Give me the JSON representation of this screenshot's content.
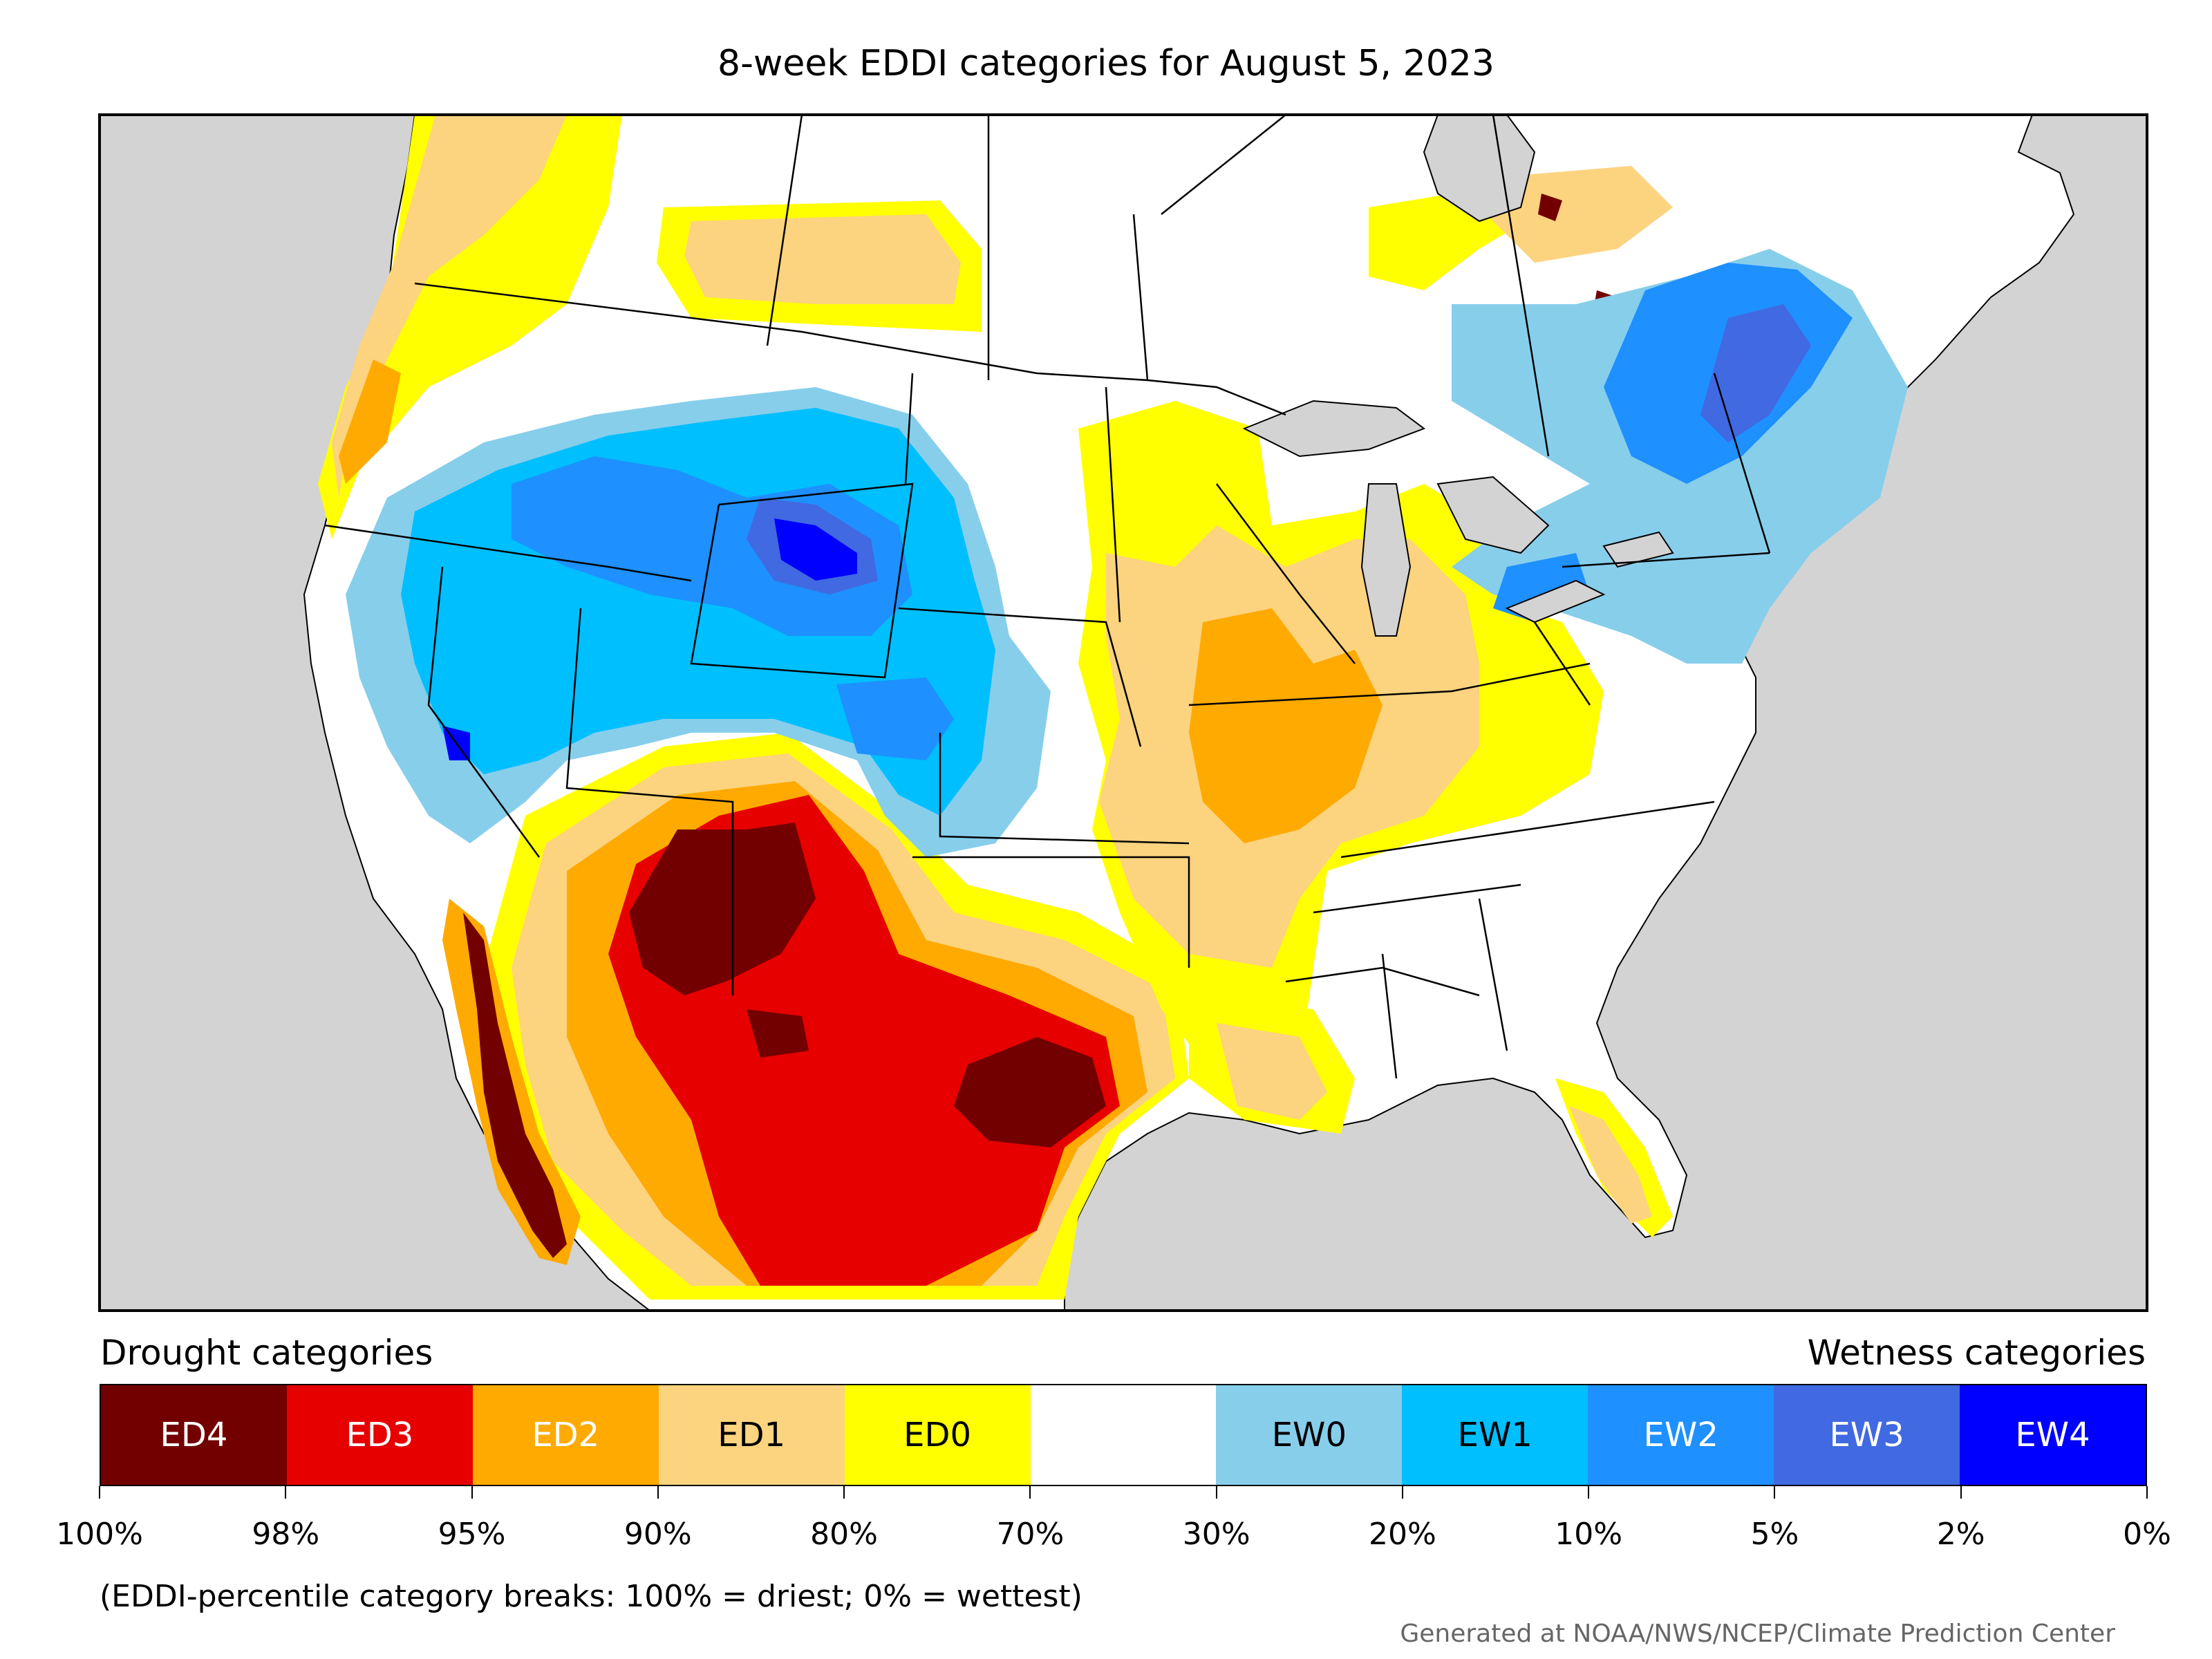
{
  "title": "8-week EDDI categories for August 5, 2023",
  "legend": {
    "drought_title": "Drought categories",
    "wetness_title": "Wetness categories",
    "categories": [
      {
        "label": "ED4",
        "color": "#730000",
        "text_color": "#ffffff"
      },
      {
        "label": "ED3",
        "color": "#e60000",
        "text_color": "#ffffff"
      },
      {
        "label": "ED2",
        "color": "#ffaa00",
        "text_color": "#ffffff"
      },
      {
        "label": "ED1",
        "color": "#fcd37f",
        "text_color": "#000000"
      },
      {
        "label": "ED0",
        "color": "#ffff00",
        "text_color": "#000000"
      },
      {
        "label": "",
        "color": "#ffffff",
        "text_color": "#000000"
      },
      {
        "label": "EW0",
        "color": "#87ceeb",
        "text_color": "#000000"
      },
      {
        "label": "EW1",
        "color": "#00bfff",
        "text_color": "#000000"
      },
      {
        "label": "EW2",
        "color": "#1e90ff",
        "text_color": "#ffffff"
      },
      {
        "label": "EW3",
        "color": "#4169e1",
        "text_color": "#ffffff"
      },
      {
        "label": "EW4",
        "color": "#0000ff",
        "text_color": "#ffffff"
      }
    ],
    "breaks": [
      "100%",
      "98%",
      "95%",
      "90%",
      "80%",
      "70%",
      "30%",
      "20%",
      "10%",
      "5%",
      "2%",
      "0%"
    ]
  },
  "footnote": "(EDDI-percentile category breaks: 100% = driest; 0% = wettest)",
  "credit": "Generated at NOAA/NWS/NCEP/Climate Prediction Center",
  "colors": {
    "ocean": "#d3d3d3",
    "land": "#ffffff",
    "border": "#000000"
  }
}
